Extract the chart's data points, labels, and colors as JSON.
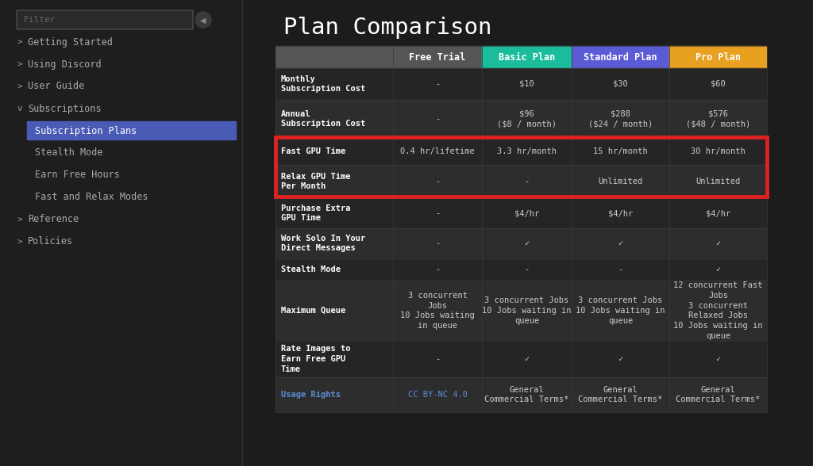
{
  "title": "Plan Comparison",
  "bg_color": "#1c1c1c",
  "sidebar_bg": "#1e1e1e",
  "cell_bg_dark": "#252525",
  "cell_bg_medium": "#2d2d2d",
  "header_gray": "#555555",
  "header_teal": "#1abc9c",
  "header_purple": "#5b5bd6",
  "header_orange": "#e8a020",
  "highlight_border": "#dd2222",
  "text_white": "#ffffff",
  "text_gray": "#cccccc",
  "text_dim": "#aaaaaa",
  "active_bg": "#4a5bb5",
  "sidebar_items": [
    {
      "label": "Getting Started",
      "indent": 0,
      "arrow": "> ",
      "active": false
    },
    {
      "label": "Using Discord",
      "indent": 0,
      "arrow": "> ",
      "active": false
    },
    {
      "label": "User Guide",
      "indent": 0,
      "arrow": "> ",
      "active": false
    },
    {
      "label": "Subscriptions",
      "indent": 0,
      "arrow": "v ",
      "active": false
    },
    {
      "label": "Subscription Plans",
      "indent": 1,
      "arrow": "",
      "active": true
    },
    {
      "label": "Stealth Mode",
      "indent": 1,
      "arrow": "",
      "active": false
    },
    {
      "label": "Earn Free Hours",
      "indent": 1,
      "arrow": "",
      "active": false
    },
    {
      "label": "Fast and Relax Modes",
      "indent": 1,
      "arrow": "",
      "active": false
    },
    {
      "label": "Reference",
      "indent": 0,
      "arrow": "> ",
      "active": false
    },
    {
      "label": "Policies",
      "indent": 0,
      "arrow": "> ",
      "active": false
    }
  ],
  "col_headers": [
    "",
    "Free Trial",
    "Basic Plan",
    "Standard Plan",
    "Pro Plan"
  ],
  "header_colors": [
    "#555555",
    "#555555",
    "#1abc9c",
    "#5b5bd6",
    "#e8a020"
  ],
  "rows": [
    {
      "label": "Monthly\nSubscription Cost",
      "values": [
        "-",
        "$10",
        "$30",
        "$60"
      ],
      "highlight": false,
      "label_color": null,
      "value_colors": [
        null,
        null,
        null,
        null
      ]
    },
    {
      "label": "Annual\nSubscription Cost",
      "values": [
        "-",
        "$96\n($8 / month)",
        "$288\n($24 / month)",
        "$576\n($48 / month)"
      ],
      "highlight": false,
      "label_color": null,
      "value_colors": [
        null,
        null,
        null,
        null
      ]
    },
    {
      "label": "Fast GPU Time",
      "values": [
        "0.4 hr/lifetime",
        "3.3 hr/month",
        "15 hr/month",
        "30 hr/month"
      ],
      "highlight": true,
      "label_color": null,
      "value_colors": [
        null,
        null,
        null,
        null
      ]
    },
    {
      "label": "Relax GPU Time\nPer Month",
      "values": [
        "-",
        "-",
        "Unlimited",
        "Unlimited"
      ],
      "highlight": true,
      "label_color": null,
      "value_colors": [
        null,
        null,
        null,
        null
      ]
    },
    {
      "label": "Purchase Extra\nGPU Time",
      "values": [
        "-",
        "$4/hr",
        "$4/hr",
        "$4/hr"
      ],
      "highlight": false,
      "label_color": null,
      "value_colors": [
        null,
        null,
        null,
        null
      ]
    },
    {
      "label": "Work Solo In Your\nDirect Messages",
      "values": [
        "-",
        "✓",
        "✓",
        "✓"
      ],
      "highlight": false,
      "label_color": null,
      "value_colors": [
        null,
        null,
        null,
        null
      ]
    },
    {
      "label": "Stealth Mode",
      "values": [
        "-",
        "-",
        "-",
        "✓"
      ],
      "highlight": false,
      "label_color": null,
      "value_colors": [
        null,
        null,
        null,
        null
      ]
    },
    {
      "label": "Maximum Queue",
      "values": [
        "3 concurrent\nJobs\n10 Jobs waiting\nin queue",
        "3 concurrent Jobs\n10 Jobs waiting in\nqueue",
        "3 concurrent Jobs\n10 Jobs waiting in\nqueue",
        "12 concurrent Fast\nJobs\n3 concurrent\nRelaxed Jobs\n10 Jobs waiting in\nqueue"
      ],
      "highlight": false,
      "label_color": null,
      "value_colors": [
        null,
        null,
        null,
        null
      ]
    },
    {
      "label": "Rate Images to\nEarn Free GPU\nTime",
      "values": [
        "-",
        "✓",
        "✓",
        "✓"
      ],
      "highlight": false,
      "label_color": null,
      "value_colors": [
        null,
        null,
        null,
        null
      ]
    },
    {
      "label": "Usage Rights",
      "values": [
        "CC BY-NC 4.0",
        "General\nCommercial Terms*",
        "General\nCommercial Terms*",
        "General\nCommercial Terms*"
      ],
      "highlight": false,
      "label_color": "#5b8dd9",
      "value_colors": [
        "#5b8dd9",
        null,
        null,
        null
      ]
    }
  ]
}
